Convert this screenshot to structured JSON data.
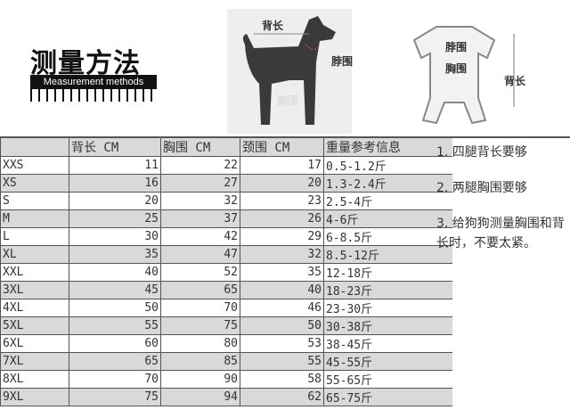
{
  "header": {
    "title": "测量方法",
    "subtitle": "Measurement methods",
    "dog_labels": {
      "back": "背长",
      "neck": "脖围",
      "chest": "胸围"
    },
    "shirt_labels": {
      "neck": "脖围",
      "chest": "胸围",
      "back": "背长"
    }
  },
  "table": {
    "columns": [
      "",
      "背长 CM",
      "胸围 CM",
      "颈围 CM",
      "重量参考信息"
    ],
    "rows": [
      [
        "XXS",
        "11",
        "22",
        "17",
        "0.5-1.2斤"
      ],
      [
        "XS",
        "16",
        "27",
        "20",
        "1.3-2.4斤"
      ],
      [
        "S",
        "20",
        "32",
        "23",
        "2.5-4斤"
      ],
      [
        "M",
        "25",
        "37",
        "26",
        "4-6斤"
      ],
      [
        "L",
        "30",
        "42",
        "29",
        "6-8.5斤"
      ],
      [
        "XL",
        "35",
        "47",
        "32",
        "8.5-12斤"
      ],
      [
        "XXL",
        "40",
        "52",
        "35",
        "12-18斤"
      ],
      [
        "3XL",
        "45",
        "65",
        "40",
        "18-23斤"
      ],
      [
        "4XL",
        "50",
        "70",
        "46",
        "23-30斤"
      ],
      [
        "5XL",
        "55",
        "75",
        "50",
        "30-38斤"
      ],
      [
        "6XL",
        "60",
        "80",
        "53",
        "38-45斤"
      ],
      [
        "7XL",
        "65",
        "85",
        "55",
        "45-55斤"
      ],
      [
        "8XL",
        "70",
        "90",
        "58",
        "55-65斤"
      ],
      [
        "9XL",
        "75",
        "94",
        "62",
        "65-75斤"
      ]
    ]
  },
  "notes": [
    "1. 四腿背长要够",
    "2. 两腿胸围要够",
    "3. 给狗狗测量胸围和背长时，不要太紧。"
  ]
}
